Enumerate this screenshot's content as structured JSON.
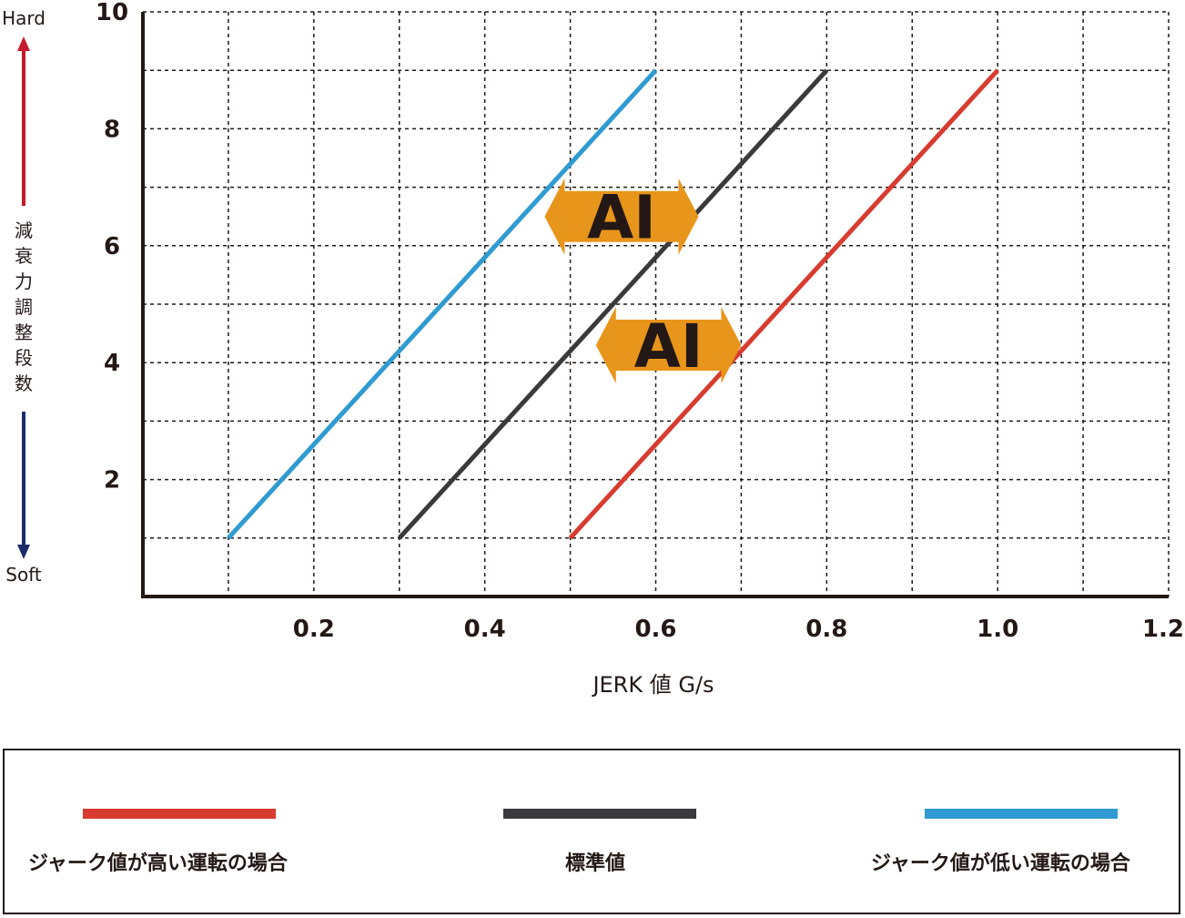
{
  "chart_data": {
    "type": "line",
    "xlabel": "JERK 値 G/s",
    "ylabel": "減衰力調整段数",
    "y_top_label": "Hard",
    "y_bottom_label": "Soft",
    "xlim": [
      0,
      1.2
    ],
    "ylim": [
      0,
      10
    ],
    "x_ticks": [
      0.2,
      0.4,
      0.6,
      0.8,
      1.0,
      1.2
    ],
    "x_tick_labels": [
      "0.2",
      "0.4",
      "0.6",
      "0.8",
      "1.0",
      "1.2"
    ],
    "y_ticks": [
      2,
      4,
      6,
      8,
      10
    ],
    "y_tick_labels": [
      "2",
      "4",
      "6",
      "8",
      "10"
    ],
    "grid": true,
    "legend_position": "bottom",
    "series": [
      {
        "name": "ジャーク値が高い運転の場合",
        "color": "#d83b2f",
        "x": [
          0.5,
          1.0
        ],
        "y": [
          1,
          9
        ]
      },
      {
        "name": "標準値",
        "color": "#3a3a3c",
        "x": [
          0.3,
          0.8
        ],
        "y": [
          1,
          9
        ]
      },
      {
        "name": "ジャーク値が低い運転の場合",
        "color": "#2f9bd1",
        "x": [
          0.1,
          0.6
        ],
        "y": [
          1,
          9
        ]
      }
    ],
    "annotations": [
      {
        "text": "AI",
        "x_from": 0.47,
        "x_to": 0.65,
        "y": 6.5
      },
      {
        "text": "AI",
        "x_from": 0.53,
        "x_to": 0.7,
        "y": 4.3
      }
    ],
    "colors": {
      "axis": "#231815",
      "grid": "#231815",
      "annotation": "#e8951b",
      "hard_arrow": "#c5192d",
      "soft_arrow": "#1d2b6b"
    }
  }
}
